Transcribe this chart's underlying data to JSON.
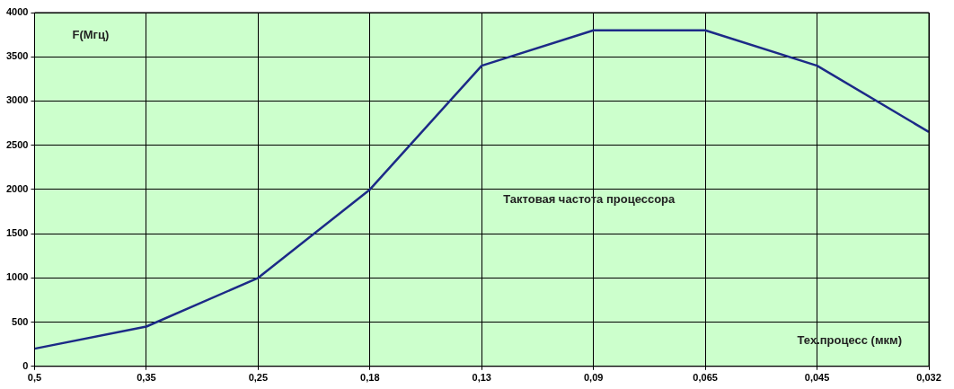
{
  "chart_data": {
    "type": "line",
    "xlabel": "Тех.процесс (мкм)",
    "ylabel": "F(Мгц)",
    "annotations": [
      "Тактовая частота процессора"
    ],
    "categories": [
      "0,5",
      "0,35",
      "0,25",
      "0,18",
      "0,13",
      "0,09",
      "0,065",
      "0,045",
      "0,032"
    ],
    "series": [
      {
        "color": "#1c2a87",
        "values": [
          200,
          450,
          1000,
          2000,
          3400,
          3800,
          3800,
          3400,
          2650
        ]
      }
    ],
    "ylim": [
      0,
      4000
    ],
    "yticks": [
      0,
      500,
      1000,
      1500,
      2000,
      2500,
      3000,
      3500,
      4000
    ],
    "grid": true,
    "legend": false,
    "marker": "none",
    "line_style": "solid"
  }
}
